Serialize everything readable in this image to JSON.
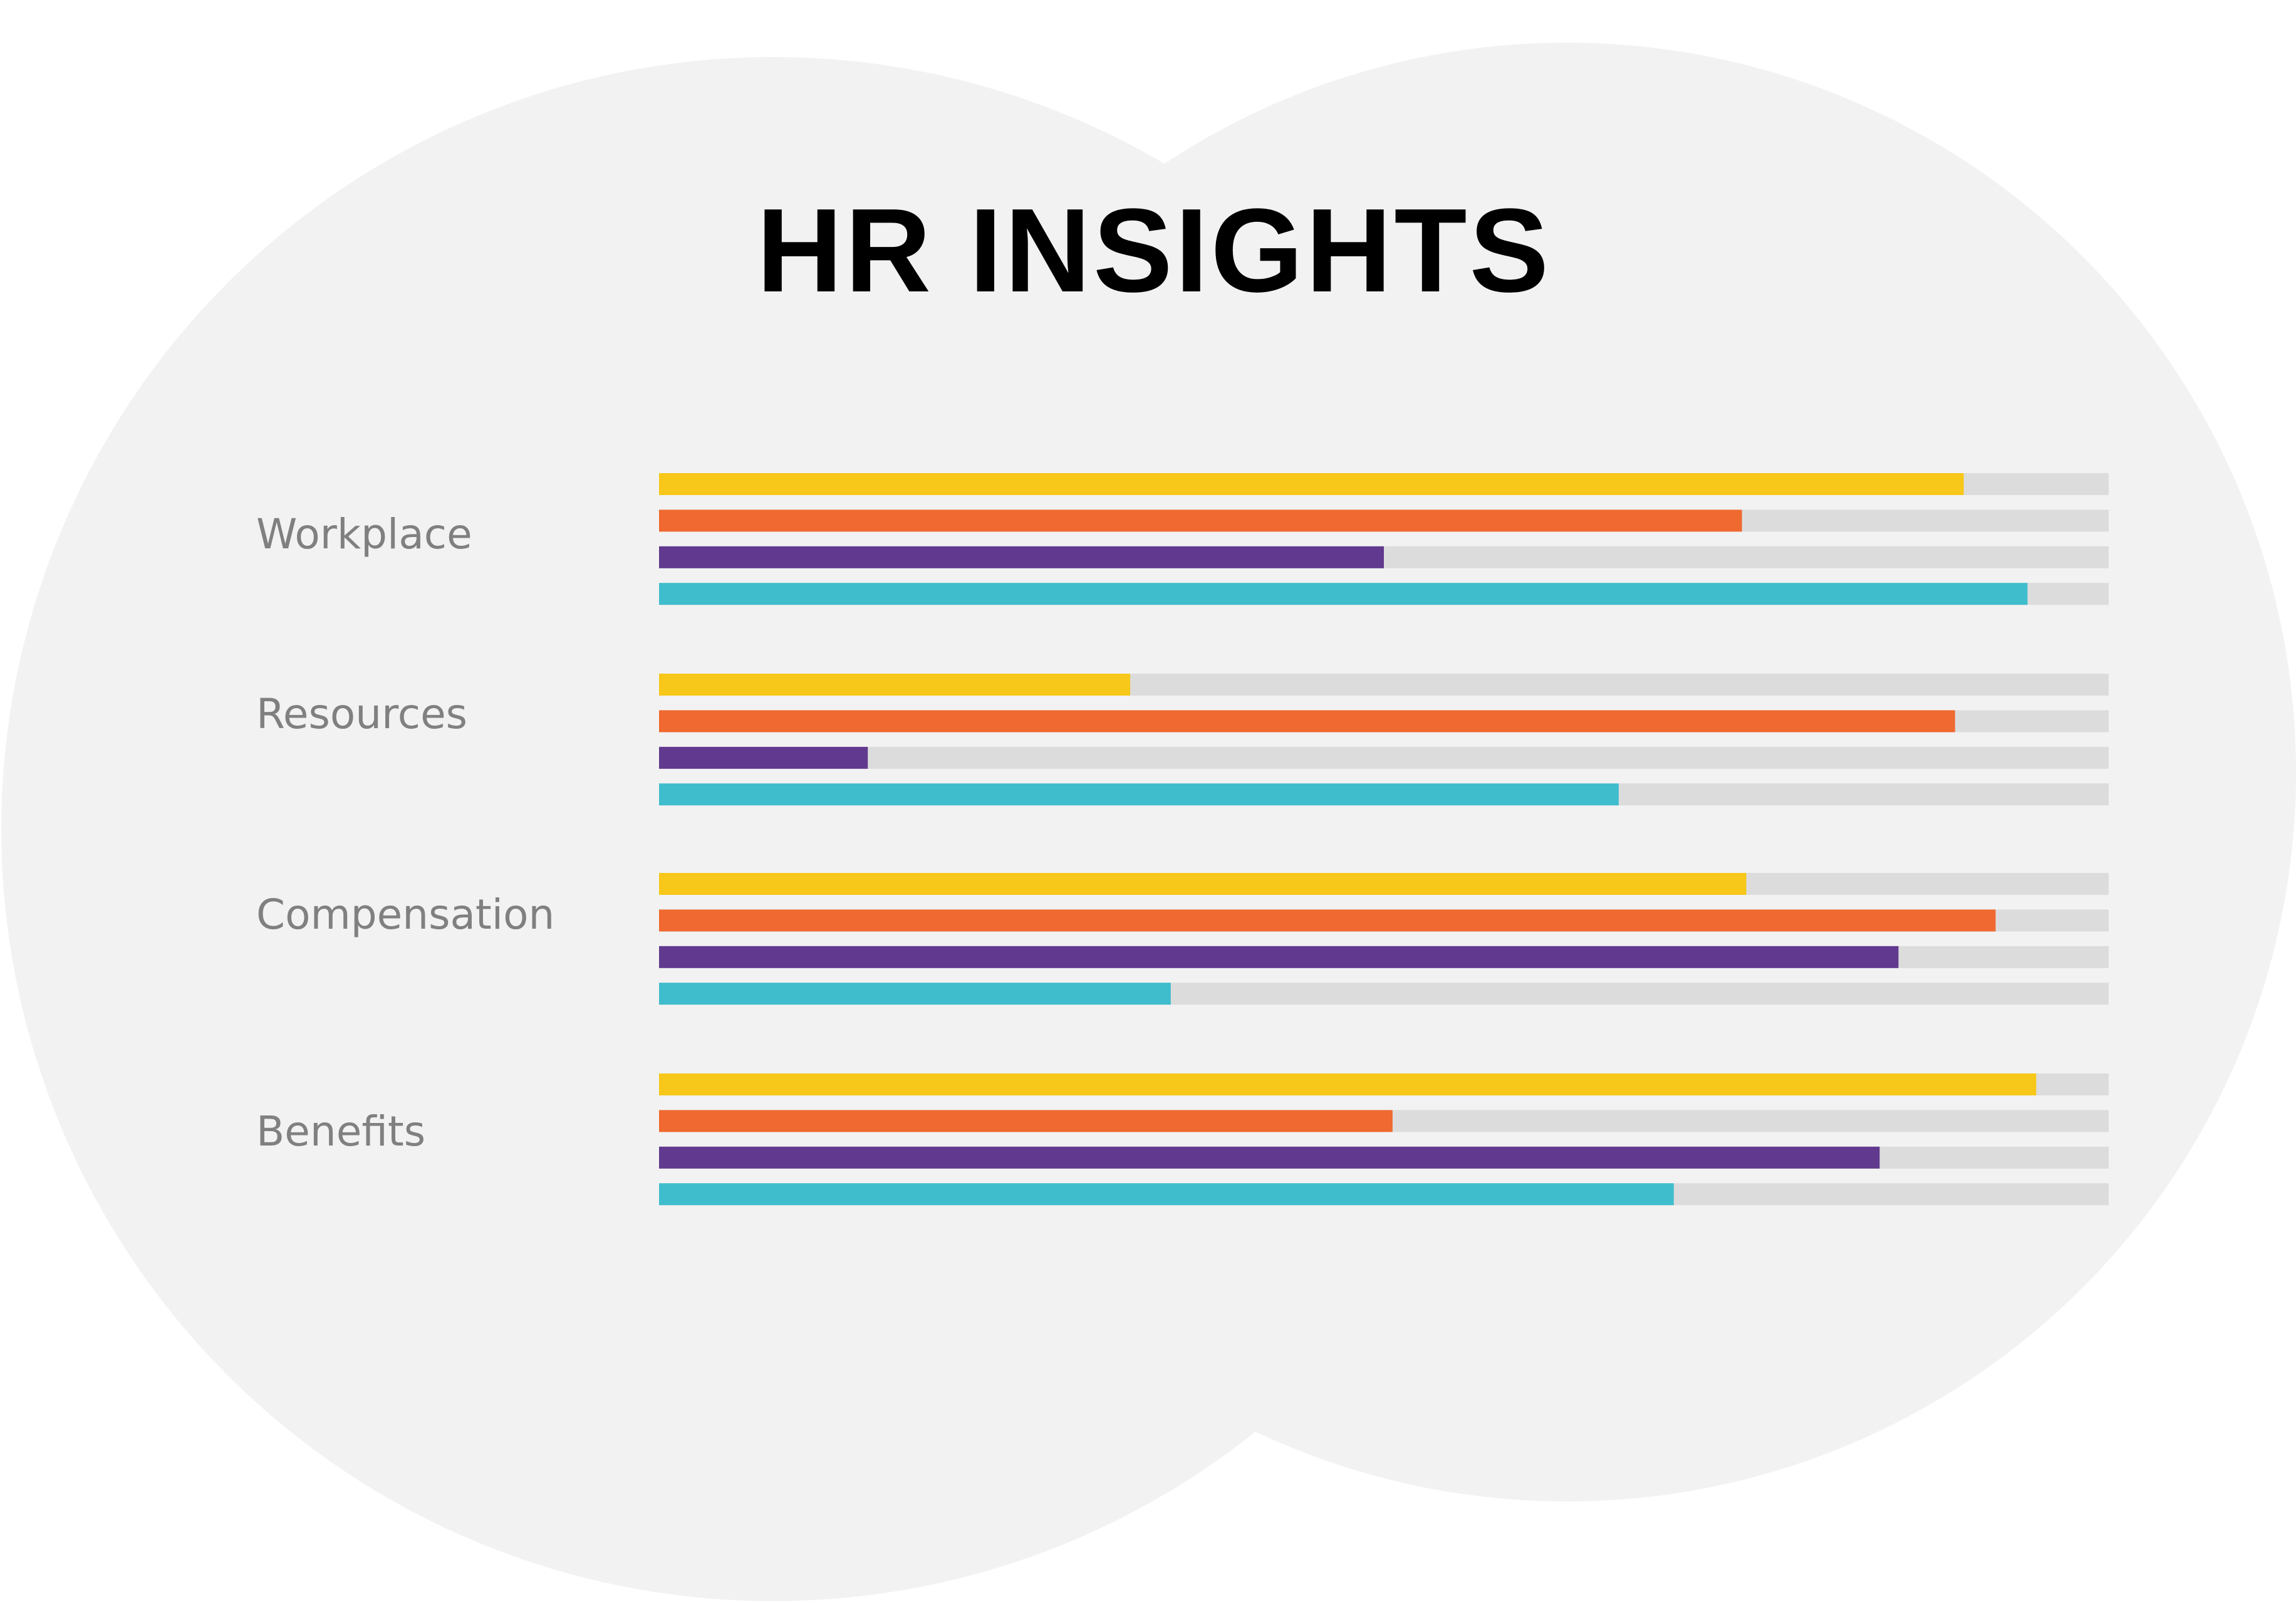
{
  "chart_data": {
    "type": "bar",
    "orientation": "horizontal",
    "title": "HR INSIGHTS",
    "categories": [
      "Workplace",
      "Resources",
      "Compensation",
      "Benefits"
    ],
    "xlim": [
      0,
      1
    ],
    "grid": false,
    "legend": "none",
    "track_color": "#dcdcdc",
    "background_color": "#f2f2f2",
    "series": [
      {
        "color": "#f7c719",
        "values": [
          0.9,
          0.325,
          0.75,
          0.95
        ]
      },
      {
        "color": "#ef6930",
        "values": [
          0.747,
          0.894,
          0.922,
          0.506
        ]
      },
      {
        "color": "#61398e",
        "values": [
          0.5,
          0.144,
          0.855,
          0.842
        ]
      },
      {
        "color": "#3fbdcc",
        "values": [
          0.944,
          0.662,
          0.353,
          0.7
        ]
      }
    ]
  }
}
